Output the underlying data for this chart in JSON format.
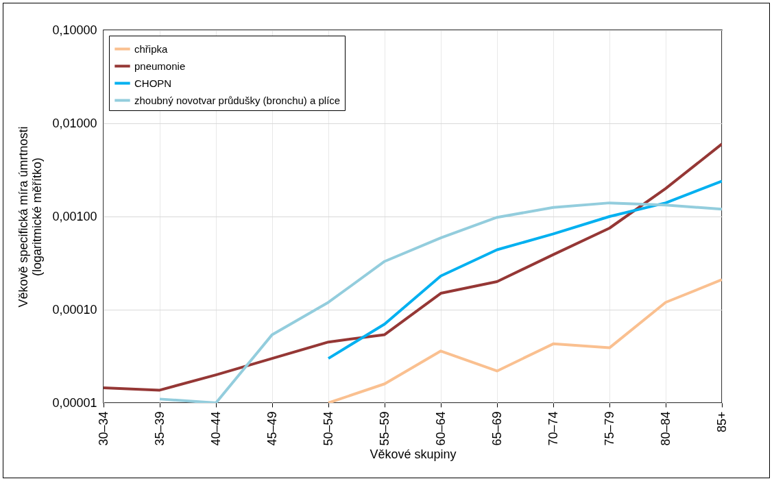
{
  "chart_data": {
    "type": "line",
    "xlabel": "Věkové skupiny",
    "ylabel": "Věkově specifická míra úmrtnosti\n(logaritmické měřítko)",
    "categories": [
      "30–34",
      "35–39",
      "40–44",
      "45–49",
      "50–54",
      "55–59",
      "60–64",
      "65–69",
      "70–74",
      "75–79",
      "80–84",
      "85+"
    ],
    "series": [
      {
        "name": "chřipka",
        "color": "#fac090",
        "values": [
          null,
          null,
          null,
          null,
          1e-05,
          1.6e-05,
          3.6e-05,
          2.2e-05,
          4.3e-05,
          3.9e-05,
          0.00012,
          0.00021
        ]
      },
      {
        "name": "pneumonie",
        "color": "#953735",
        "values": [
          1.45e-05,
          1.37e-05,
          2e-05,
          3e-05,
          4.5e-05,
          5.4e-05,
          0.00015,
          0.0002,
          0.00039,
          0.00075,
          0.002,
          0.006
        ]
      },
      {
        "name": "CHOPN",
        "color": "#00b0f0",
        "values": [
          null,
          null,
          null,
          null,
          3e-05,
          7e-05,
          0.00023,
          0.00044,
          0.00065,
          0.001,
          0.0014,
          0.0024
        ]
      },
      {
        "name": "zhoubný novotvar průdušky (bronchu) a plíce",
        "color": "#93cddd",
        "values": [
          null,
          1.1e-05,
          1e-05,
          5.4e-05,
          0.00012,
          0.00033,
          0.00059,
          0.00098,
          0.00125,
          0.0014,
          0.00133,
          0.0012
        ]
      }
    ],
    "log": true,
    "ylim": [
      1e-05,
      0.1
    ],
    "yticks": [
      {
        "value": 1e-05,
        "label": "0,00001"
      },
      {
        "value": 0.0001,
        "label": "0,00010"
      },
      {
        "value": 0.001,
        "label": "0,00100"
      },
      {
        "value": 0.01,
        "label": "0,01000"
      },
      {
        "value": 0.1,
        "label": "0,10000"
      }
    ],
    "grid": true,
    "legend": "top left",
    "line_style": "solid"
  }
}
